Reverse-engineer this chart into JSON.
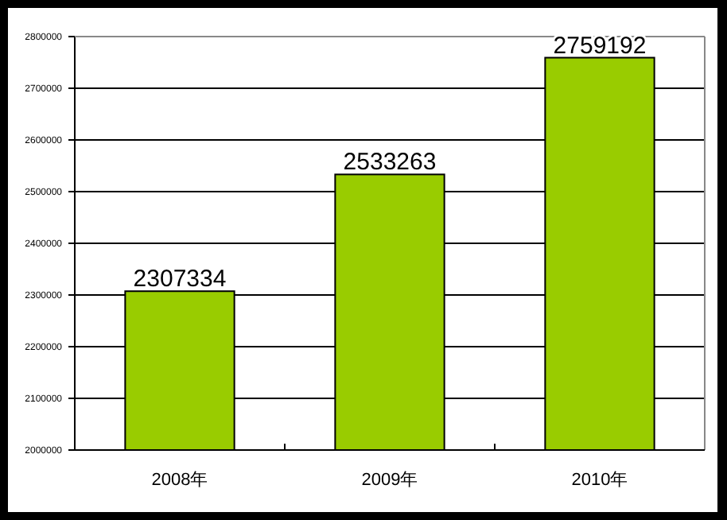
{
  "chart_data": {
    "type": "bar",
    "categories": [
      "2008年",
      "2009年",
      "2010年"
    ],
    "values": [
      2307334,
      2533263,
      2759192
    ],
    "color": "#99cc00",
    "ylim": [
      2000000,
      2800000
    ],
    "yticks": [
      2000000,
      2100000,
      2200000,
      2300000,
      2400000,
      2500000,
      2600000,
      2700000,
      2800000
    ],
    "grid": "y",
    "data_labels": true
  }
}
